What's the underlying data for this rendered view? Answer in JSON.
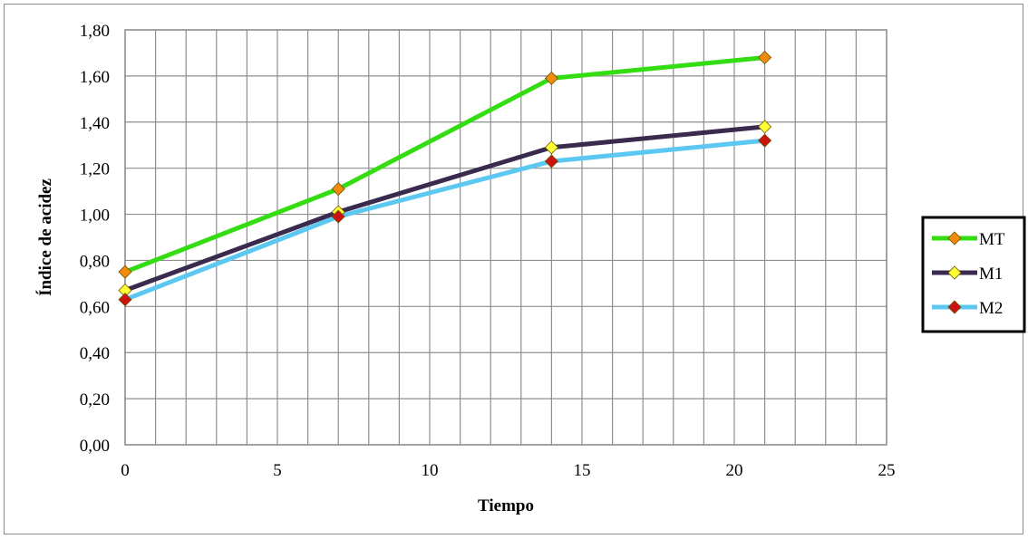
{
  "chart_data": {
    "type": "line",
    "title": "",
    "xlabel": "Tiempo",
    "ylabel": "Índice de acidez",
    "xlim": [
      0,
      25
    ],
    "ylim": [
      0,
      1.8
    ],
    "x_ticks": [
      "0",
      "5",
      "10",
      "15",
      "20",
      "25"
    ],
    "y_ticks": [
      "0,00",
      "0,20",
      "0,40",
      "0,60",
      "0,80",
      "1,00",
      "1,20",
      "1,40",
      "1,60",
      "1,80"
    ],
    "grid": true,
    "legend_position": "right",
    "series": [
      {
        "name": "MT",
        "line_color": "#33dd11",
        "marker_color": "#f28a0c",
        "x": [
          0,
          7,
          14,
          21
        ],
        "y": [
          0.75,
          1.11,
          1.59,
          1.68
        ]
      },
      {
        "name": "M1",
        "line_color": "#3a2a4e",
        "marker_color": "#ffff33",
        "x": [
          0,
          7,
          14,
          21
        ],
        "y": [
          0.67,
          1.01,
          1.29,
          1.38
        ]
      },
      {
        "name": "M2",
        "line_color": "#5cc8f2",
        "marker_color": "#cc1111",
        "x": [
          0,
          7,
          14,
          21
        ],
        "y": [
          0.63,
          0.99,
          1.23,
          1.32
        ]
      }
    ]
  }
}
